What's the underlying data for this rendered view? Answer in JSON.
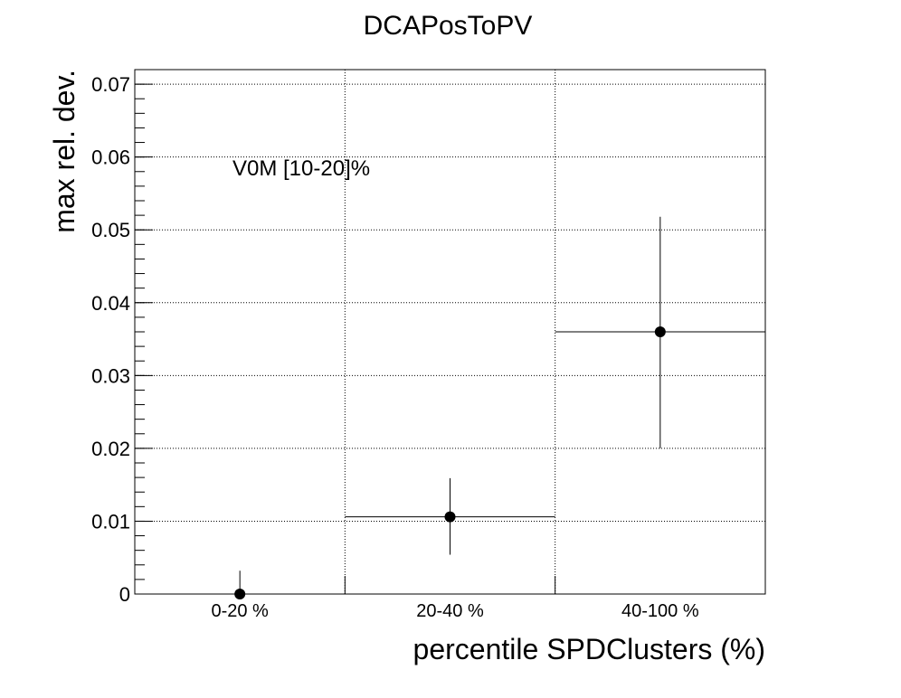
{
  "chart_data": {
    "type": "scatter",
    "title": "DCAPosToPV",
    "xlabel": "percentile SPDClusters (%)",
    "ylabel": "max rel. dev.",
    "annotation": "V0M [10-20]%",
    "categories": [
      "0-20 %",
      "20-40 %",
      "40-100 %"
    ],
    "ylim": [
      0,
      0.072
    ],
    "yticks": [
      0,
      0.01,
      0.02,
      0.03,
      0.04,
      0.05,
      0.06,
      0.07
    ],
    "ytick_labels": [
      "0",
      "0.01",
      "0.02",
      "0.03",
      "0.04",
      "0.05",
      "0.06",
      "0.07"
    ],
    "grid": true,
    "series": [
      {
        "points": [
          {
            "category": "0-20 %",
            "y": 0.0,
            "yerr_low": 0.0,
            "yerr_high": 0.0032
          },
          {
            "category": "20-40 %",
            "y": 0.0106,
            "yerr_low": 0.0052,
            "yerr_high": 0.0053
          },
          {
            "category": "40-100 %",
            "y": 0.036,
            "yerr_low": 0.016,
            "yerr_high": 0.0158
          }
        ],
        "color": "#000000"
      }
    ]
  }
}
